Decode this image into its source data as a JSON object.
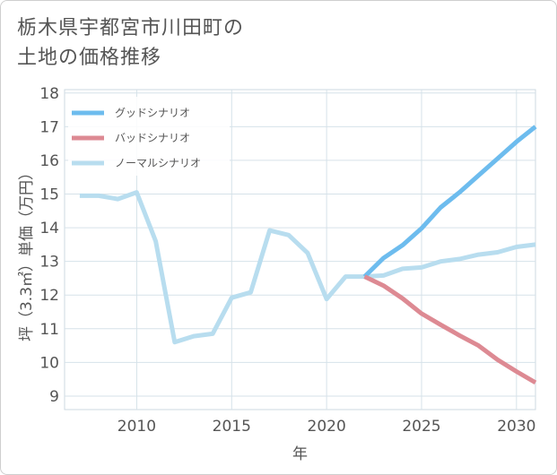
{
  "title_line1": "栃木県宇都宮市川田町の",
  "title_line2": "土地の価格推移",
  "chart_data": {
    "type": "line",
    "xlabel": "年",
    "ylabel": "坪（3.3㎡）単価（万円）",
    "xlim": [
      2006.2,
      2031
    ],
    "ylim": [
      8.6,
      18.1
    ],
    "x_ticks": [
      2010,
      2015,
      2020,
      2025,
      2030
    ],
    "y_ticks": [
      9,
      10,
      11,
      12,
      13,
      14,
      15,
      16,
      17,
      18
    ],
    "series": [
      {
        "name": "ノーマルシナリオ",
        "color": "#b8ddef",
        "x": [
          2007,
          2008,
          2009,
          2010,
          2011,
          2012,
          2013,
          2014,
          2015,
          2016,
          2017,
          2018,
          2019,
          2020,
          2021,
          2022,
          2023,
          2024,
          2025,
          2026,
          2027,
          2028,
          2029,
          2030,
          2031
        ],
        "y": [
          14.95,
          14.95,
          14.85,
          15.05,
          13.6,
          10.6,
          10.78,
          10.85,
          11.92,
          12.08,
          13.92,
          13.78,
          13.25,
          11.88,
          12.55,
          12.55,
          12.58,
          12.78,
          12.82,
          13.0,
          13.07,
          13.2,
          13.27,
          13.43,
          13.5
        ]
      },
      {
        "name": "グッドシナリオ",
        "color": "#6dbcee",
        "x": [
          2022,
          2023,
          2024,
          2025,
          2026,
          2027,
          2028,
          2029,
          2030,
          2031
        ],
        "y": [
          12.55,
          13.1,
          13.48,
          13.98,
          14.6,
          15.05,
          15.55,
          16.05,
          16.55,
          17.0
        ]
      },
      {
        "name": "バッドシナリオ",
        "color": "#dd8a93",
        "x": [
          2022,
          2023,
          2024,
          2025,
          2026,
          2027,
          2028,
          2029,
          2030,
          2031
        ],
        "y": [
          12.55,
          12.28,
          11.9,
          11.45,
          11.12,
          10.8,
          10.5,
          10.08,
          9.73,
          9.4
        ]
      }
    ],
    "legend": [
      {
        "name": "グッドシナリオ",
        "color": "#6dbcee"
      },
      {
        "name": "バッドシナリオ",
        "color": "#dd8a93"
      },
      {
        "name": "ノーマルシナリオ",
        "color": "#b8ddef"
      }
    ]
  }
}
